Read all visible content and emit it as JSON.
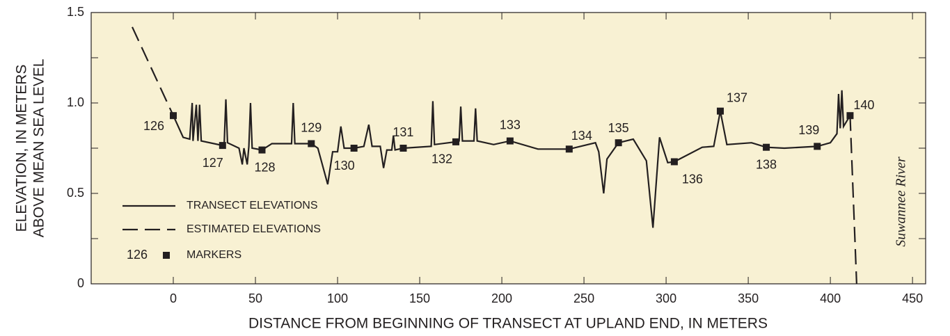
{
  "chart_data": {
    "type": "line",
    "x_label": "DISTANCE FROM BEGINNING OF TRANSECT AT UPLAND END, IN METERS",
    "y_label": [
      "ELEVATION, IN METERS",
      "ABOVE MEAN SEA LEVEL"
    ],
    "annotation": "Suwannee River",
    "xlim": [
      -50,
      458
    ],
    "xticks": [
      0,
      50,
      100,
      150,
      200,
      250,
      300,
      350,
      400,
      450
    ],
    "ylim": [
      0,
      1.5
    ],
    "yticks": [
      0,
      0.5,
      {
        "value": 1.0,
        "label": "1.0"
      },
      {
        "value": 1.5,
        "label": "1.5"
      }
    ],
    "yminor": [
      0.25,
      0.75,
      1.25
    ],
    "background": "#f8f1d3",
    "series": [
      {
        "name": "TRANSECT ELEVATIONS",
        "color": "#231f20",
        "dash": "solid",
        "x": [
          0,
          6,
          10,
          11.5,
          12,
          14,
          15,
          16,
          17,
          30,
          31,
          32,
          33,
          40,
          42,
          43,
          45,
          46,
          47,
          48,
          54,
          60,
          72,
          73,
          74,
          84,
          88,
          94,
          97,
          100,
          102,
          104,
          110,
          116,
          119,
          121,
          126,
          128,
          130,
          133,
          134,
          135,
          140,
          157,
          158,
          159,
          172,
          174,
          175,
          176,
          183,
          184,
          185,
          195,
          205,
          222,
          241,
          257,
          259,
          262,
          264,
          271,
          280,
          288,
          292,
          296,
          301,
          305,
          322,
          329,
          333,
          337,
          352,
          361,
          372,
          392,
          400,
          404,
          405,
          406,
          407,
          408,
          412
        ],
        "values": [
          0.93,
          0.81,
          0.8,
          1.0,
          0.79,
          0.99,
          0.79,
          0.99,
          0.79,
          0.765,
          0.78,
          1.02,
          0.78,
          0.75,
          0.66,
          0.75,
          0.66,
          0.76,
          1.0,
          0.75,
          0.74,
          0.775,
          0.775,
          1.0,
          0.775,
          0.775,
          0.75,
          0.55,
          0.73,
          0.73,
          0.87,
          0.75,
          0.75,
          0.76,
          0.88,
          0.76,
          0.76,
          0.64,
          0.74,
          0.74,
          0.82,
          0.74,
          0.75,
          0.76,
          1.01,
          0.77,
          0.785,
          0.79,
          0.98,
          0.79,
          0.79,
          0.97,
          0.79,
          0.77,
          0.79,
          0.745,
          0.745,
          0.78,
          0.73,
          0.5,
          0.69,
          0.78,
          0.8,
          0.68,
          0.31,
          0.81,
          0.67,
          0.675,
          0.755,
          0.76,
          0.955,
          0.77,
          0.78,
          0.755,
          0.75,
          0.76,
          0.78,
          0.83,
          1.05,
          0.86,
          1.07,
          0.87,
          0.93
        ]
      },
      {
        "name": "ESTIMATED ELEVATIONS",
        "color": "#231f20",
        "dash": "dashed",
        "x": [
          -25,
          0,
          null,
          412,
          416
        ],
        "values": [
          1.42,
          0.93,
          null,
          0.93,
          0
        ]
      }
    ],
    "markers": {
      "name": "MARKERS",
      "color": "#231f20",
      "labels": [
        "126",
        "127",
        "128",
        "129",
        "130",
        "131",
        "132",
        "133",
        "134",
        "135",
        "136",
        "137",
        "138",
        "139",
        "140"
      ],
      "x": [
        0,
        30,
        54,
        84,
        110,
        140,
        172,
        205,
        241,
        271,
        305,
        333,
        361,
        392,
        412
      ],
      "values": [
        0.93,
        0.765,
        0.74,
        0.775,
        0.75,
        0.75,
        0.785,
        0.79,
        0.745,
        0.78,
        0.675,
        0.955,
        0.755,
        0.76,
        0.93
      ]
    }
  }
}
